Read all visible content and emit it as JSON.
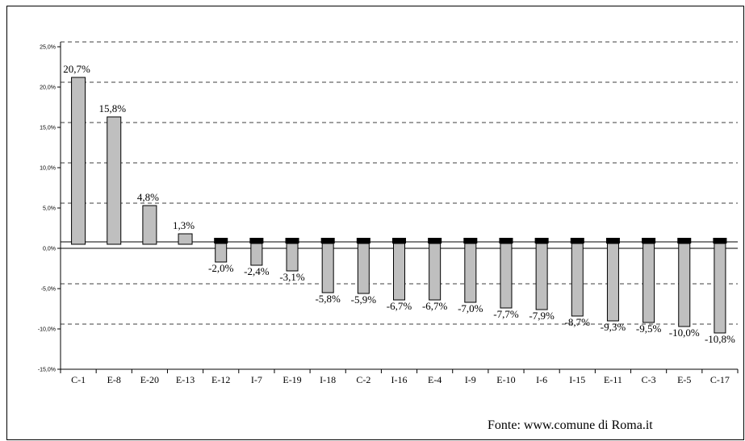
{
  "chart_data": {
    "type": "bar",
    "categories": [
      "C-1",
      "E-8",
      "E-20",
      "E-13",
      "E-12",
      "I-7",
      "E-19",
      "I-18",
      "C-2",
      "I-16",
      "E-4",
      "I-9",
      "E-10",
      "I-6",
      "I-15",
      "E-11",
      "C-3",
      "E-5",
      "C-17"
    ],
    "values": [
      20.7,
      15.8,
      4.8,
      1.3,
      -2.0,
      -2.4,
      -3.1,
      -5.8,
      -5.9,
      -6.7,
      -6.7,
      -7.0,
      -7.7,
      -7.9,
      -8.7,
      -9.3,
      -9.5,
      -10.0,
      -10.8
    ],
    "data_labels": [
      "20,7%",
      "15,8%",
      "4,8%",
      "1,3%",
      "-2,0%",
      "-2,4%",
      "-3,1%",
      "-5,8%",
      "-5,9%",
      "-6,7%",
      "-6,7%",
      "-7,0%",
      "-7,7%",
      "-7,9%",
      "-8,7%",
      "-9,3%",
      "-9,5%",
      "-10,0%",
      "-10,8%"
    ],
    "yticks": [
      -15,
      -10,
      -5,
      0,
      5,
      10,
      15,
      20,
      25
    ],
    "ytick_labels": [
      "-15,0%",
      "-10,0%",
      "-5,0%",
      "0,0%",
      "5,0%",
      "10,0%",
      "15,0%",
      "20,0%",
      "25,0%"
    ],
    "ylim": [
      -15,
      25
    ],
    "grid": "dashed horizontal",
    "bar_color": "#bfbfbf",
    "cap_color": "#000000",
    "title": "",
    "xlabel": "",
    "ylabel": ""
  },
  "source_note": "Fonte: www.comune di Roma.it"
}
